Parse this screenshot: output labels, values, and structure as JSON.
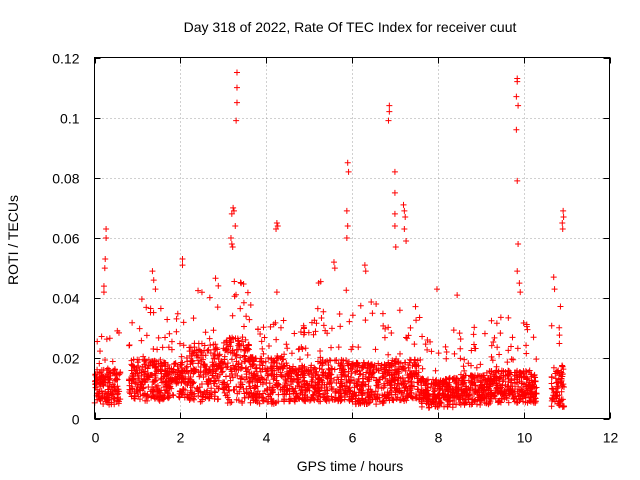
{
  "chart_data": {
    "type": "scatter",
    "title": "Day 318 of 2022, Rate Of TEC Index for receiver cuut",
    "xlabel": "GPS time / hours",
    "ylabel": "ROTI / TECUs",
    "xlim": [
      0,
      12
    ],
    "ylim": [
      0,
      0.12
    ],
    "x_ticks": [
      "0",
      "2",
      "4",
      "6",
      "8",
      "10",
      "12"
    ],
    "x_tick_values": [
      0,
      2,
      4,
      6,
      8,
      10,
      12
    ],
    "y_ticks": [
      "0",
      "0.02",
      "0.04",
      "0.06",
      "0.08",
      "0.1",
      "0.12"
    ],
    "y_tick_values": [
      0,
      0.02,
      0.04,
      0.06,
      0.08,
      0.1,
      0.12
    ],
    "grid": true,
    "marker": "+",
    "color": "#ff0000",
    "series": [
      {
        "name": "ROTI",
        "outliers": [
          [
            0.27,
            0.063
          ],
          [
            0.27,
            0.06
          ],
          [
            0.25,
            0.053
          ],
          [
            0.24,
            0.05
          ],
          [
            0.22,
            0.044
          ],
          [
            0.22,
            0.042
          ],
          [
            1.35,
            0.049
          ],
          [
            1.38,
            0.046
          ],
          [
            1.42,
            0.043
          ],
          [
            2.05,
            0.053
          ],
          [
            2.05,
            0.051
          ],
          [
            3.23,
            0.07
          ],
          [
            3.25,
            0.069
          ],
          [
            3.2,
            0.068
          ],
          [
            3.28,
            0.064
          ],
          [
            3.18,
            0.06
          ],
          [
            3.2,
            0.058
          ],
          [
            3.22,
            0.057
          ],
          [
            3.32,
            0.115
          ],
          [
            3.32,
            0.11
          ],
          [
            3.32,
            0.105
          ],
          [
            3.3,
            0.099
          ],
          [
            4.25,
            0.065
          ],
          [
            4.27,
            0.064
          ],
          [
            4.23,
            0.063
          ],
          [
            4.25,
            0.042
          ],
          [
            5.9,
            0.085
          ],
          [
            5.92,
            0.082
          ],
          [
            5.88,
            0.069
          ],
          [
            5.9,
            0.064
          ],
          [
            5.88,
            0.06
          ],
          [
            5.58,
            0.052
          ],
          [
            5.6,
            0.05
          ],
          [
            6.3,
            0.051
          ],
          [
            6.32,
            0.049
          ],
          [
            6.87,
            0.104
          ],
          [
            6.87,
            0.102
          ],
          [
            6.85,
            0.099
          ],
          [
            7.0,
            0.082
          ],
          [
            7.0,
            0.075
          ],
          [
            7.0,
            0.068
          ],
          [
            7.0,
            0.064
          ],
          [
            7.02,
            0.057
          ],
          [
            7.2,
            0.071
          ],
          [
            7.22,
            0.069
          ],
          [
            7.24,
            0.067
          ],
          [
            7.22,
            0.063
          ],
          [
            7.26,
            0.059
          ],
          [
            7.98,
            0.043
          ],
          [
            8.45,
            0.041
          ],
          [
            9.85,
            0.113
          ],
          [
            9.85,
            0.112
          ],
          [
            9.83,
            0.107
          ],
          [
            9.87,
            0.104
          ],
          [
            9.83,
            0.096
          ],
          [
            9.85,
            0.079
          ],
          [
            9.87,
            0.058
          ],
          [
            9.85,
            0.049
          ],
          [
            9.9,
            0.045
          ],
          [
            9.92,
            0.042
          ],
          [
            10.7,
            0.047
          ],
          [
            10.72,
            0.043
          ],
          [
            10.92,
            0.069
          ],
          [
            10.93,
            0.067
          ],
          [
            10.9,
            0.065
          ],
          [
            10.91,
            0.063
          ]
        ],
        "segments": [
          {
            "x": [
              0.0,
              0.6
            ],
            "base": 0.01,
            "spread": 0.012,
            "max": 0.034
          },
          {
            "x": [
              0.8,
              1.6
            ],
            "base": 0.012,
            "spread": 0.014,
            "max": 0.04
          },
          {
            "x": [
              1.6,
              2.2
            ],
            "base": 0.012,
            "spread": 0.012,
            "max": 0.036
          },
          {
            "x": [
              2.2,
              3.0
            ],
            "base": 0.014,
            "spread": 0.02,
            "max": 0.047
          },
          {
            "x": [
              3.0,
              3.6
            ],
            "base": 0.015,
            "spread": 0.022,
            "max": 0.046
          },
          {
            "x": [
              3.6,
              4.4
            ],
            "base": 0.012,
            "spread": 0.016,
            "max": 0.04
          },
          {
            "x": [
              4.4,
              5.2
            ],
            "base": 0.011,
            "spread": 0.012,
            "max": 0.034
          },
          {
            "x": [
              5.2,
              6.0
            ],
            "base": 0.012,
            "spread": 0.014,
            "max": 0.046
          },
          {
            "x": [
              6.0,
              6.8
            ],
            "base": 0.011,
            "spread": 0.014,
            "max": 0.04
          },
          {
            "x": [
              6.8,
              7.6
            ],
            "base": 0.012,
            "spread": 0.014,
            "max": 0.038
          },
          {
            "x": [
              7.6,
              8.4
            ],
            "base": 0.008,
            "spread": 0.01,
            "max": 0.03
          },
          {
            "x": [
              8.4,
              9.2
            ],
            "base": 0.009,
            "spread": 0.01,
            "max": 0.032
          },
          {
            "x": [
              9.2,
              10.3
            ],
            "base": 0.01,
            "spread": 0.011,
            "max": 0.034
          },
          {
            "x": [
              10.65,
              10.95
            ],
            "base": 0.01,
            "spread": 0.014,
            "max": 0.04
          }
        ]
      }
    ]
  }
}
